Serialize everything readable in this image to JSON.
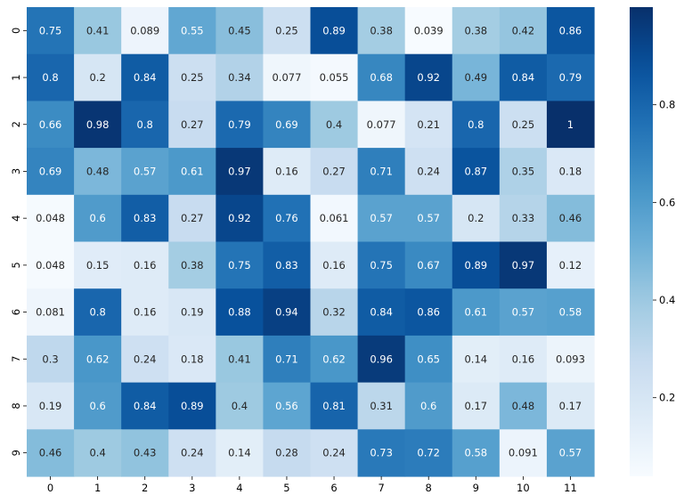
{
  "chart_data": {
    "type": "heatmap",
    "title": "",
    "xlabel": "",
    "ylabel": "",
    "colormap": "Blues",
    "x_categories": [
      "0",
      "1",
      "2",
      "3",
      "4",
      "5",
      "6",
      "7",
      "8",
      "9",
      "10",
      "11"
    ],
    "y_categories": [
      "0",
      "1",
      "2",
      "3",
      "4",
      "5",
      "6",
      "7",
      "8",
      "9"
    ],
    "values": [
      [
        0.75,
        0.41,
        0.089,
        0.55,
        0.45,
        0.25,
        0.89,
        0.38,
        0.039,
        0.38,
        0.42,
        0.86
      ],
      [
        0.8,
        0.2,
        0.84,
        0.25,
        0.34,
        0.077,
        0.055,
        0.68,
        0.92,
        0.49,
        0.84,
        0.79
      ],
      [
        0.66,
        0.98,
        0.8,
        0.27,
        0.79,
        0.69,
        0.4,
        0.077,
        0.21,
        0.8,
        0.25,
        1
      ],
      [
        0.69,
        0.48,
        0.57,
        0.61,
        0.97,
        0.16,
        0.27,
        0.71,
        0.24,
        0.87,
        0.35,
        0.18
      ],
      [
        0.048,
        0.6,
        0.83,
        0.27,
        0.92,
        0.76,
        0.061,
        0.57,
        0.57,
        0.2,
        0.33,
        0.46
      ],
      [
        0.048,
        0.15,
        0.16,
        0.38,
        0.75,
        0.83,
        0.16,
        0.75,
        0.67,
        0.89,
        0.97,
        0.12
      ],
      [
        0.081,
        0.8,
        0.16,
        0.19,
        0.88,
        0.94,
        0.32,
        0.84,
        0.86,
        0.61,
        0.57,
        0.58
      ],
      [
        0.3,
        0.62,
        0.24,
        0.18,
        0.41,
        0.71,
        0.62,
        0.96,
        0.65,
        0.14,
        0.16,
        0.093
      ],
      [
        0.19,
        0.6,
        0.84,
        0.89,
        0.4,
        0.56,
        0.81,
        0.31,
        0.6,
        0.17,
        0.48,
        0.17
      ],
      [
        0.46,
        0.4,
        0.43,
        0.24,
        0.14,
        0.28,
        0.24,
        0.73,
        0.72,
        0.58,
        0.091,
        0.57
      ]
    ],
    "annotations": [
      [
        "0.75",
        "0.41",
        "0.089",
        "0.55",
        "0.45",
        "0.25",
        "0.89",
        "0.38",
        "0.039",
        "0.38",
        "0.42",
        "0.86"
      ],
      [
        "0.8",
        "0.2",
        "0.84",
        "0.25",
        "0.34",
        "0.077",
        "0.055",
        "0.68",
        "0.92",
        "0.49",
        "0.84",
        "0.79"
      ],
      [
        "0.66",
        "0.98",
        "0.8",
        "0.27",
        "0.79",
        "0.69",
        "0.4",
        "0.077",
        "0.21",
        "0.8",
        "0.25",
        "1"
      ],
      [
        "0.69",
        "0.48",
        "0.57",
        "0.61",
        "0.97",
        "0.16",
        "0.27",
        "0.71",
        "0.24",
        "0.87",
        "0.35",
        "0.18"
      ],
      [
        "0.048",
        "0.6",
        "0.83",
        "0.27",
        "0.92",
        "0.76",
        "0.061",
        "0.57",
        "0.57",
        "0.2",
        "0.33",
        "0.46"
      ],
      [
        "0.048",
        "0.15",
        "0.16",
        "0.38",
        "0.75",
        "0.83",
        "0.16",
        "0.75",
        "0.67",
        "0.89",
        "0.97",
        "0.12"
      ],
      [
        "0.081",
        "0.8",
        "0.16",
        "0.19",
        "0.88",
        "0.94",
        "0.32",
        "0.84",
        "0.86",
        "0.61",
        "0.57",
        "0.58"
      ],
      [
        "0.3",
        "0.62",
        "0.24",
        "0.18",
        "0.41",
        "0.71",
        "0.62",
        "0.96",
        "0.65",
        "0.14",
        "0.16",
        "0.093"
      ],
      [
        "0.19",
        "0.6",
        "0.84",
        "0.89",
        "0.4",
        "0.56",
        "0.81",
        "0.31",
        "0.6",
        "0.17",
        "0.48",
        "0.17"
      ],
      [
        "0.46",
        "0.4",
        "0.43",
        "0.24",
        "0.14",
        "0.28",
        "0.24",
        "0.73",
        "0.72",
        "0.58",
        "0.091",
        "0.57"
      ]
    ],
    "vmin": 0.039,
    "vmax": 1,
    "colorbar_ticks": [
      0.2,
      0.4,
      0.6,
      0.8
    ],
    "colorbar_tick_labels": [
      "0.2",
      "0.4",
      "0.6",
      "0.8"
    ]
  }
}
